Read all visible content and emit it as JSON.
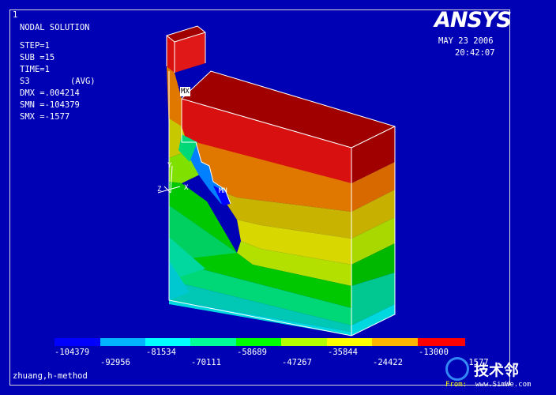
{
  "window_number": "1",
  "logo": "ANSYS",
  "date": "MAY 23 2006",
  "time": "20:42:07",
  "info": {
    "title": "NODAL SOLUTION",
    "step": "STEP=1",
    "sub": "SUB =15",
    "time": "TIME=1",
    "item": "S3",
    "avg": "(AVG)",
    "dmx": "DMX =.004214",
    "smn": "SMN =-104379",
    "smx": "SMX =-1577"
  },
  "labels": {
    "mx": "MX",
    "mn": "MN",
    "axis_z": "Z",
    "axis_x": "X",
    "axis_y": "Y"
  },
  "legend": {
    "colors": [
      "#0000ff",
      "#00b4ff",
      "#00ffff",
      "#00ff96",
      "#00ff00",
      "#b4ff00",
      "#ffff00",
      "#ffb400",
      "#ff0000"
    ],
    "top_labels": [
      "-104379",
      "-81534",
      "-58689",
      "-35844",
      "-13000"
    ],
    "bottom_labels": [
      "-92956",
      "-70111",
      "-47267",
      "-24422",
      "-1577"
    ]
  },
  "footer": "zhuang,h-method",
  "watermark": {
    "brand": "技术邻",
    "site": "www.SimWe.com",
    "from": "From:"
  },
  "model_colors": {
    "dark_red": "#a00000",
    "red": "#d81010",
    "orange": "#e07800",
    "gold": "#c8a000",
    "yellow": "#d8d800",
    "lime": "#80d800",
    "green": "#00c800",
    "sea": "#00d878",
    "teal": "#00c8b4",
    "cyan": "#00d8e0",
    "blue": "#0050ff"
  }
}
